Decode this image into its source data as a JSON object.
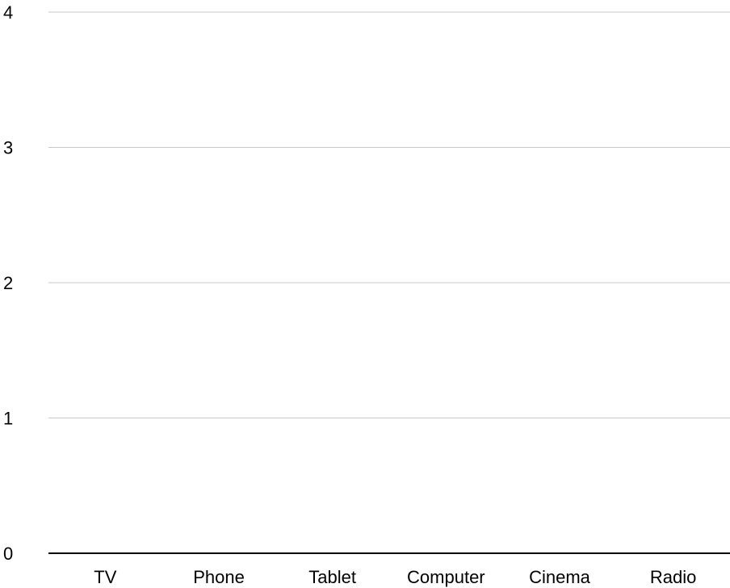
{
  "chart_data": {
    "type": "bar",
    "title": "",
    "xlabel": "",
    "ylabel": "",
    "categories": [
      "TV",
      "Phone",
      "Tablet",
      "Computer",
      "Cinema",
      "Radio"
    ],
    "series": [
      {
        "values": [
          0,
          0,
          0,
          0,
          0,
          0
        ]
      }
    ],
    "ylim": [
      0,
      4
    ],
    "yticks": [
      0,
      1,
      2,
      3,
      4
    ],
    "grid": true,
    "legend": "none"
  }
}
